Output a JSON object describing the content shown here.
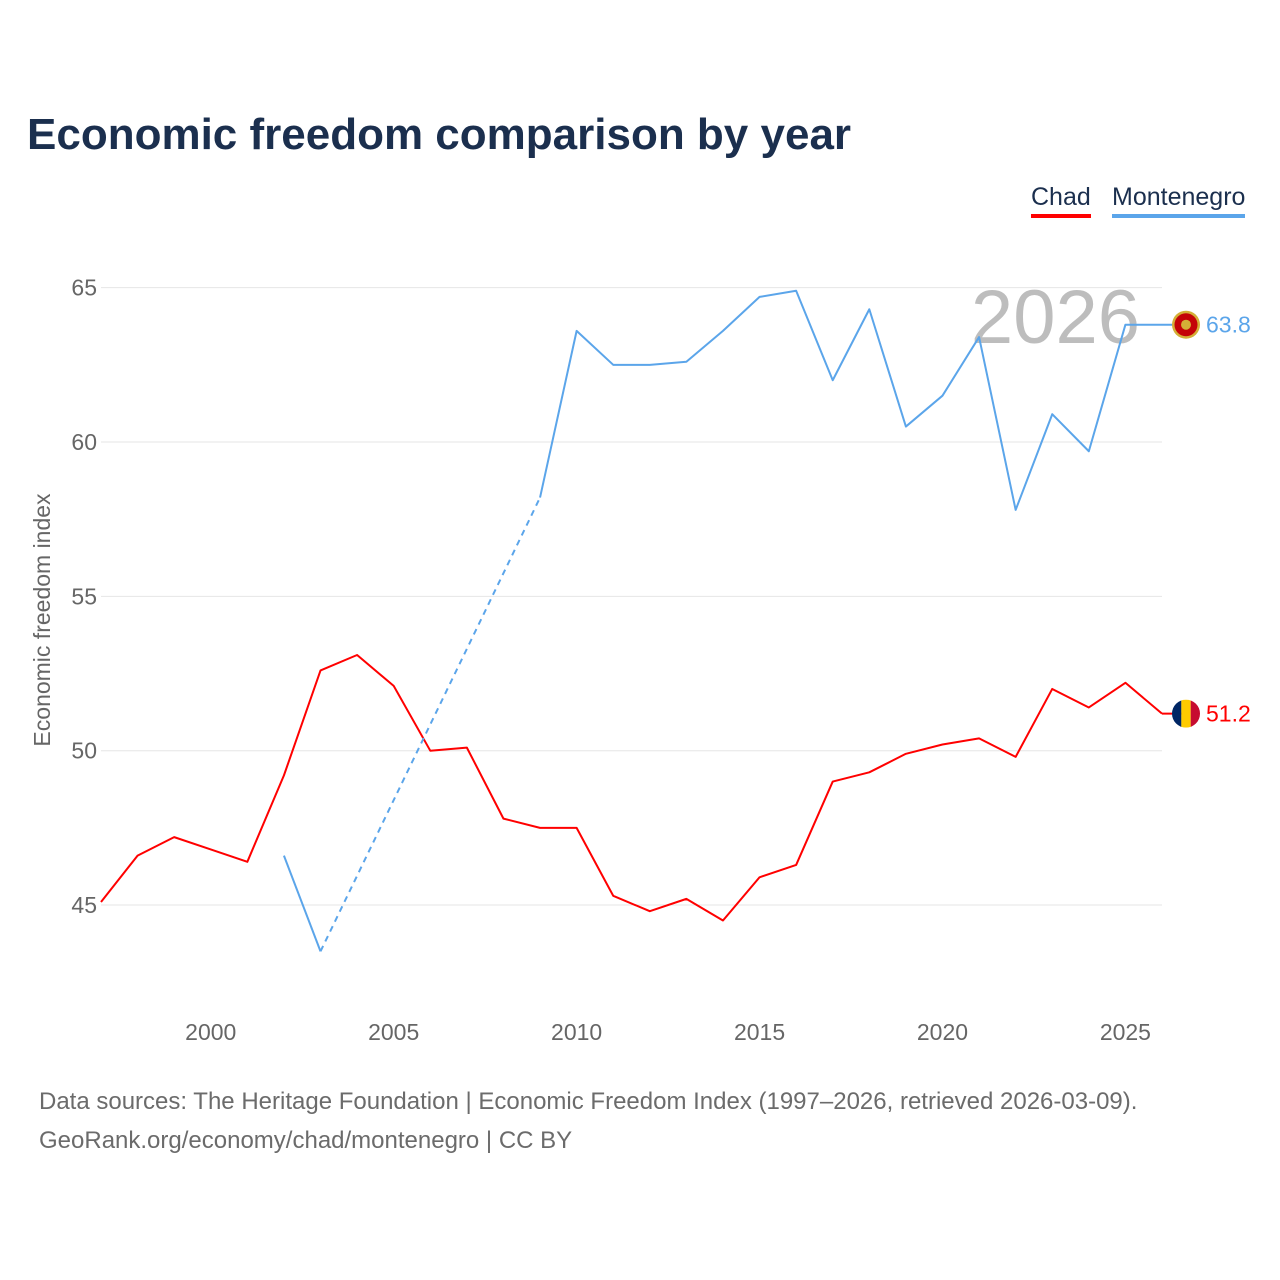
{
  "title": "Economic freedom comparison by year",
  "footer": {
    "line1": "Data sources: The Heritage Foundation | Economic Freedom Index (1997–2026, retrieved 2026-03-09).",
    "line2": "GeoRank.org/economy/chad/montenegro | CC BY"
  },
  "chart_data": {
    "type": "line",
    "title": "Economic freedom comparison by year",
    "xlabel": "",
    "ylabel": "Economic freedom index",
    "xlim": [
      1997,
      2026
    ],
    "ylim": [
      41.6,
      66.9
    ],
    "xticks": [
      2000,
      2005,
      2010,
      2015,
      2020,
      2025
    ],
    "yticks": [
      45,
      50,
      55,
      60,
      65
    ],
    "grid": true,
    "legend_placement": "top-right",
    "year_watermark": "2026",
    "series": [
      {
        "name": "Chad",
        "color": "#ff0000",
        "end_label": "51.2",
        "x": [
          1997,
          1998,
          1999,
          2000,
          2001,
          2002,
          2003,
          2004,
          2005,
          2006,
          2007,
          2008,
          2009,
          2010,
          2011,
          2012,
          2013,
          2014,
          2015,
          2016,
          2017,
          2018,
          2019,
          2020,
          2021,
          2022,
          2023,
          2024,
          2025,
          2026
        ],
        "values": [
          45.1,
          46.6,
          47.2,
          46.8,
          46.4,
          49.2,
          52.6,
          53.1,
          52.1,
          50.0,
          50.1,
          47.8,
          47.5,
          47.5,
          45.3,
          44.8,
          45.2,
          44.5,
          45.9,
          46.3,
          49.0,
          49.3,
          49.9,
          50.2,
          50.4,
          49.8,
          52.0,
          51.4,
          52.2,
          51.2
        ]
      },
      {
        "name": "Montenegro",
        "color": "#5ba5ea",
        "end_label": "63.8",
        "gap_dashed": [
          2003,
          2009
        ],
        "x": [
          2002,
          2003,
          2009,
          2010,
          2011,
          2012,
          2013,
          2014,
          2015,
          2016,
          2017,
          2018,
          2019,
          2020,
          2021,
          2022,
          2023,
          2024,
          2025,
          2026
        ],
        "values": [
          46.6,
          43.5,
          58.2,
          63.6,
          62.5,
          62.5,
          62.6,
          63.6,
          64.7,
          64.9,
          62.0,
          64.3,
          60.5,
          61.5,
          63.4,
          57.8,
          60.9,
          59.7,
          63.8,
          63.8
        ]
      }
    ]
  }
}
